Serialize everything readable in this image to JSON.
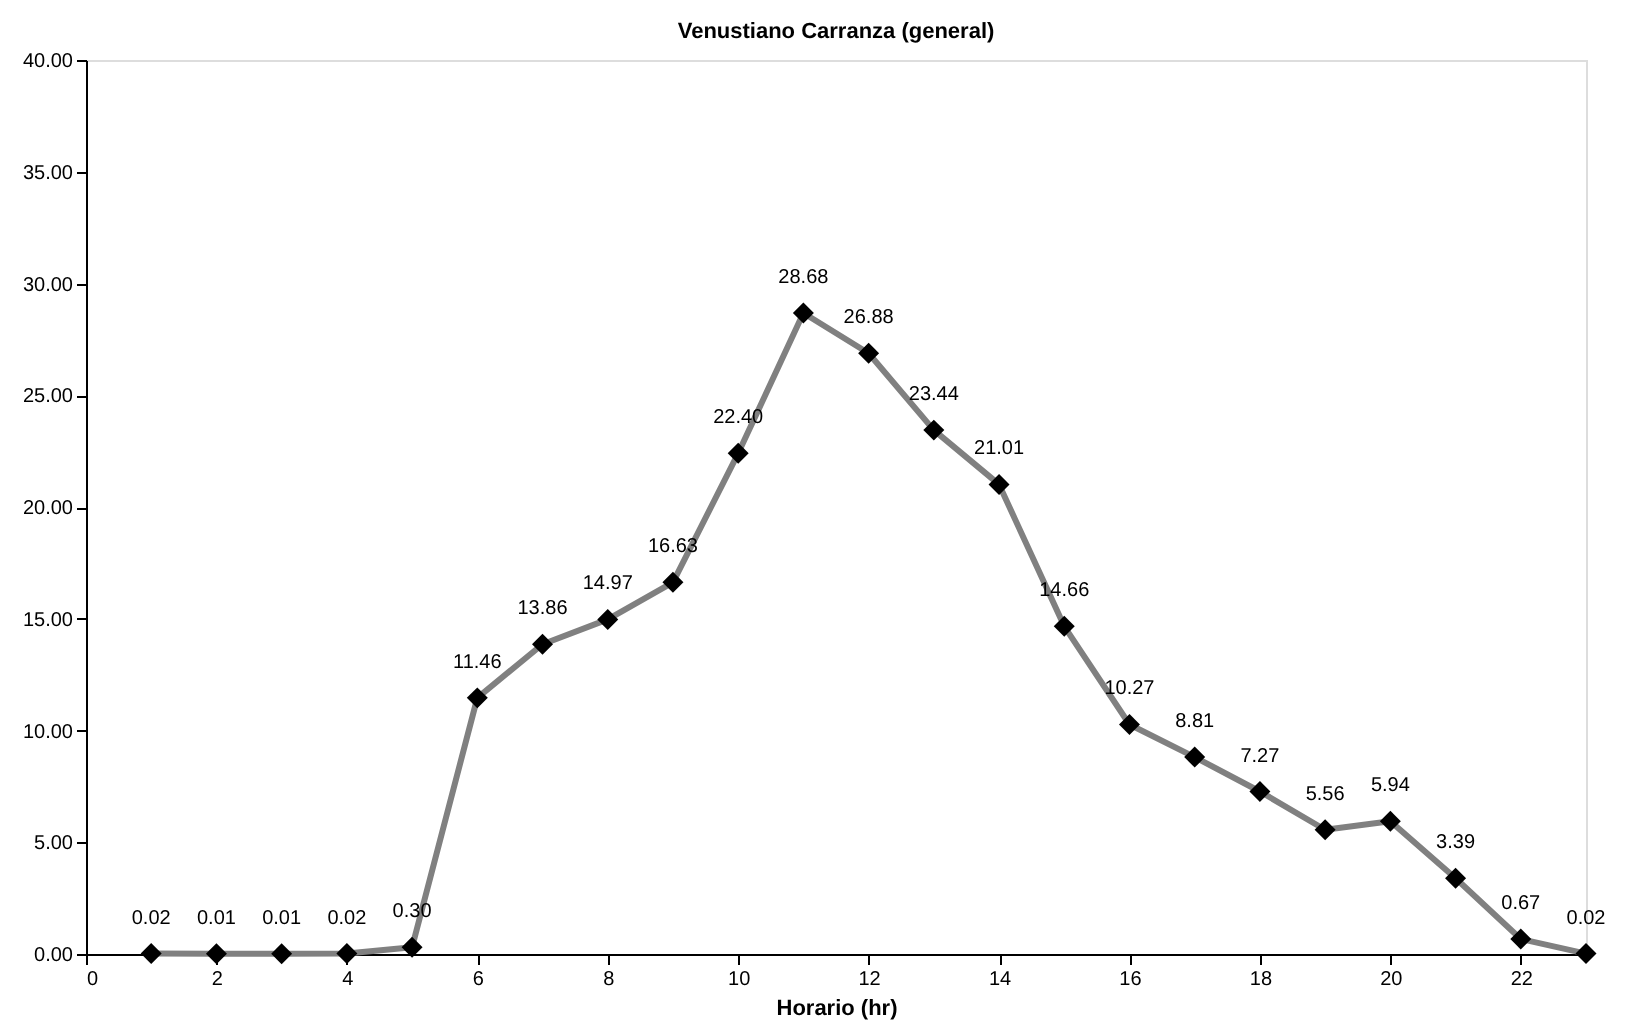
{
  "chart_data": {
    "type": "line",
    "title": "Venustiano Carranza (general)",
    "xlabel": "Horario (hr)",
    "x": [
      1,
      2,
      3,
      4,
      5,
      6,
      7,
      8,
      9,
      10,
      11,
      12,
      13,
      14,
      15,
      16,
      17,
      18,
      19,
      20,
      21,
      22,
      23
    ],
    "series": [
      {
        "color": "#808080",
        "values": [
          0.02,
          0.01,
          0.01,
          0.02,
          0.3,
          11.46,
          13.86,
          14.97,
          16.63,
          22.4,
          28.68,
          26.88,
          23.44,
          21.01,
          14.66,
          10.27,
          8.81,
          7.27,
          5.56,
          5.94,
          3.39,
          0.67,
          0.02
        ],
        "value_labels": [
          "0.02",
          "0.01",
          "0.01",
          "0.02",
          "0.30",
          "11.46",
          "13.86",
          "14.97",
          "16.63",
          "22.40",
          "28.68",
          "26.88",
          "23.44",
          "21.01",
          "14.66",
          "10.27",
          "8.81",
          "7.27",
          "5.56",
          "5.94",
          "3.39",
          "0.67",
          "0.02"
        ]
      }
    ],
    "xlim": [
      0,
      23
    ],
    "xticks": [
      0,
      2,
      4,
      6,
      8,
      10,
      12,
      14,
      16,
      18,
      20,
      22
    ],
    "ylim": [
      0,
      40
    ],
    "yticks": [
      {
        "value": 0,
        "label": "0.00"
      },
      {
        "value": 5,
        "label": "5.00"
      },
      {
        "value": 10,
        "label": "10.00"
      },
      {
        "value": 15,
        "label": "15.00"
      },
      {
        "value": 20,
        "label": "20.00"
      },
      {
        "value": 25,
        "label": "25.00"
      },
      {
        "value": 30,
        "label": "30.00"
      },
      {
        "value": 35,
        "label": "35.00"
      },
      {
        "value": 40,
        "label": "40.00"
      }
    ],
    "marker": "diamond",
    "line_style": "solid",
    "grid": false
  }
}
